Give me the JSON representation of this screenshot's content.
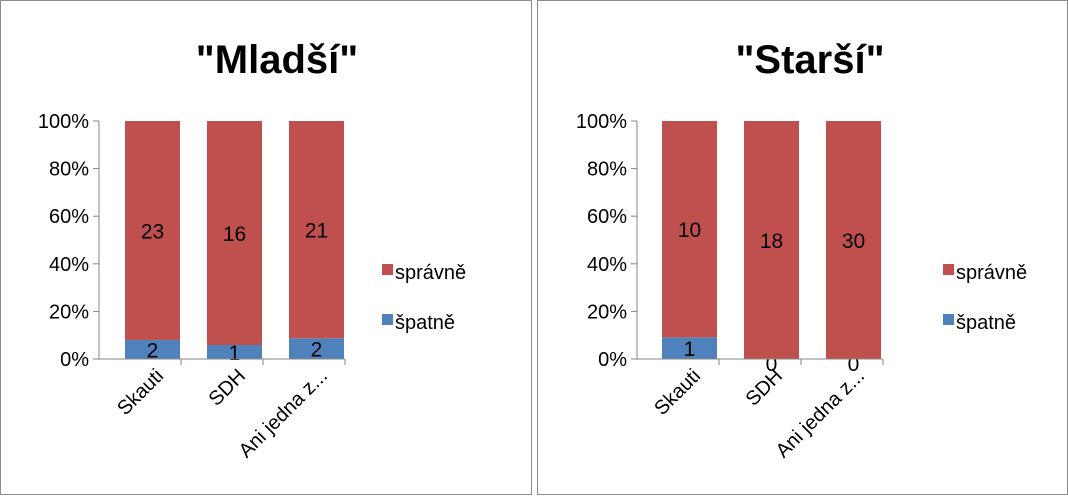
{
  "chart_data": [
    {
      "type": "bar",
      "stacked": "percent",
      "title": "\"Mladší\"",
      "categories": [
        "Skauti",
        "SDH",
        "Ani jedna z..."
      ],
      "series": [
        {
          "name": "špatně",
          "values": [
            2,
            1,
            2
          ],
          "color": "#4F81BD"
        },
        {
          "name": "správně",
          "values": [
            23,
            16,
            21
          ],
          "color": "#C0504D"
        }
      ],
      "y_ticks": [
        "0%",
        "20%",
        "40%",
        "60%",
        "80%",
        "100%"
      ],
      "ylim": [
        0,
        100
      ],
      "grid": false,
      "legend_position": "right"
    },
    {
      "type": "bar",
      "stacked": "percent",
      "title": "\"Starší\"",
      "categories": [
        "Skauti",
        "SDH",
        "Ani jedna z..."
      ],
      "series": [
        {
          "name": "špatně",
          "values": [
            1,
            0,
            0
          ],
          "color": "#4F81BD"
        },
        {
          "name": "správně",
          "values": [
            10,
            18,
            30
          ],
          "color": "#C0504D"
        }
      ],
      "y_ticks": [
        "0%",
        "20%",
        "40%",
        "60%",
        "80%",
        "100%"
      ],
      "ylim": [
        0,
        100
      ],
      "grid": false,
      "legend_position": "right"
    }
  ]
}
